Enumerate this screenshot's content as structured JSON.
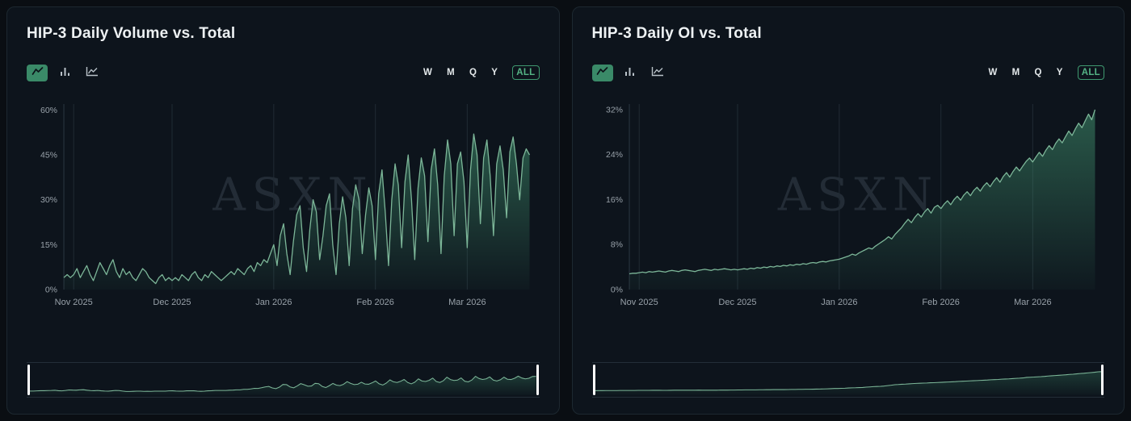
{
  "colors": {
    "accent": "#3a8a68",
    "line": "#7cb698",
    "fill": "#41926f",
    "panel_bg": "#0d141c",
    "page_bg": "#0a0e13",
    "muted_text": "#98a1a9",
    "grid": "#202b34"
  },
  "panels": [
    {
      "title": "HIP-3 Daily Volume vs. Total",
      "watermark": "ASXN",
      "toolbar": {
        "chart_types": [
          "line",
          "bar",
          "area"
        ],
        "selected_chart_type": "line",
        "ranges": [
          "W",
          "M",
          "Q",
          "Y",
          "ALL"
        ],
        "selected_range": "ALL"
      },
      "chart_data": {
        "type": "area",
        "title": "HIP-3 Daily Volume vs. Total",
        "x_tick_labels": [
          "Nov 2025",
          "Dec 2025",
          "Jan 2026",
          "Feb 2026",
          "Mar 2026"
        ],
        "x_tick_indices": [
          3,
          33,
          64,
          95,
          123
        ],
        "y_tick_labels": [
          "0%",
          "15%",
          "30%",
          "45%",
          "60%"
        ],
        "y_tick_values": [
          0,
          15,
          30,
          45,
          60
        ],
        "ylim": [
          0,
          62
        ],
        "y_scale_max": 62,
        "grid": "vertical-month-lines",
        "values": [
          4,
          5,
          4,
          5,
          7,
          4,
          6,
          8,
          5,
          3,
          6,
          9,
          7,
          5,
          8,
          10,
          6,
          4,
          7,
          5,
          6,
          4,
          3,
          5,
          7,
          6,
          4,
          3,
          2,
          4,
          5,
          3,
          4,
          3,
          4,
          3,
          5,
          4,
          3,
          5,
          6,
          4,
          3,
          5,
          4,
          6,
          5,
          4,
          3,
          4,
          5,
          6,
          5,
          7,
          6,
          5,
          7,
          8,
          6,
          9,
          8,
          10,
          9,
          12,
          15,
          8,
          18,
          22,
          12,
          5,
          16,
          25,
          28,
          14,
          6,
          20,
          30,
          26,
          10,
          18,
          28,
          32,
          15,
          5,
          22,
          31,
          24,
          8,
          27,
          35,
          30,
          12,
          25,
          34,
          28,
          10,
          32,
          40,
          26,
          8,
          30,
          42,
          35,
          14,
          36,
          45,
          30,
          10,
          34,
          44,
          38,
          16,
          40,
          47,
          35,
          12,
          38,
          50,
          42,
          18,
          42,
          46,
          36,
          14,
          40,
          52,
          45,
          22,
          44,
          50,
          38,
          18,
          42,
          48,
          40,
          24,
          46,
          51,
          42,
          30,
          44,
          47,
          45
        ]
      }
    },
    {
      "title": "HIP-3 Daily OI vs. Total",
      "watermark": "ASXN",
      "toolbar": {
        "chart_types": [
          "line",
          "bar",
          "area"
        ],
        "selected_chart_type": "line",
        "ranges": [
          "W",
          "M",
          "Q",
          "Y",
          "ALL"
        ],
        "selected_range": "ALL"
      },
      "chart_data": {
        "type": "area",
        "title": "HIP-3 Daily OI vs. Total",
        "x_tick_labels": [
          "Nov 2025",
          "Dec 2025",
          "Jan 2026",
          "Feb 2026",
          "Mar 2026"
        ],
        "x_tick_indices": [
          3,
          33,
          64,
          95,
          123
        ],
        "y_tick_labels": [
          "0%",
          "8%",
          "16%",
          "24%",
          "32%"
        ],
        "y_tick_values": [
          0,
          8,
          16,
          24,
          32
        ],
        "ylim": [
          0,
          33
        ],
        "y_scale_max": 33,
        "grid": "vertical-month-lines",
        "values": [
          2.8,
          2.9,
          2.9,
          3.0,
          3.1,
          3.0,
          3.2,
          3.1,
          3.2,
          3.3,
          3.2,
          3.1,
          3.3,
          3.4,
          3.3,
          3.2,
          3.4,
          3.5,
          3.4,
          3.3,
          3.2,
          3.4,
          3.5,
          3.6,
          3.5,
          3.4,
          3.6,
          3.5,
          3.6,
          3.7,
          3.6,
          3.5,
          3.6,
          3.5,
          3.6,
          3.7,
          3.6,
          3.8,
          3.7,
          3.9,
          3.8,
          4.0,
          3.9,
          4.1,
          4.0,
          4.2,
          4.1,
          4.3,
          4.2,
          4.4,
          4.3,
          4.5,
          4.4,
          4.6,
          4.5,
          4.7,
          4.8,
          4.7,
          4.9,
          5.0,
          4.9,
          5.1,
          5.2,
          5.3,
          5.4,
          5.6,
          5.8,
          6.0,
          6.3,
          6.1,
          6.5,
          6.8,
          7.1,
          7.4,
          7.2,
          7.7,
          8.1,
          8.5,
          8.9,
          9.4,
          9.0,
          9.8,
          10.4,
          11.0,
          11.8,
          12.5,
          11.9,
          12.8,
          13.5,
          12.9,
          13.8,
          14.4,
          13.6,
          14.6,
          15.0,
          14.4,
          15.2,
          15.8,
          15.1,
          16.0,
          16.6,
          15.9,
          16.8,
          17.4,
          16.7,
          17.6,
          18.2,
          17.5,
          18.4,
          19.0,
          18.3,
          19.2,
          19.9,
          19.1,
          20.1,
          20.8,
          20.0,
          21.0,
          21.8,
          21.1,
          22.0,
          22.8,
          23.4,
          22.7,
          23.6,
          24.4,
          23.7,
          24.8,
          25.6,
          24.9,
          26.0,
          26.8,
          26.1,
          27.2,
          28.2,
          27.4,
          28.6,
          29.6,
          28.8,
          30.0,
          31.2,
          30.2,
          32.0
        ]
      }
    }
  ]
}
